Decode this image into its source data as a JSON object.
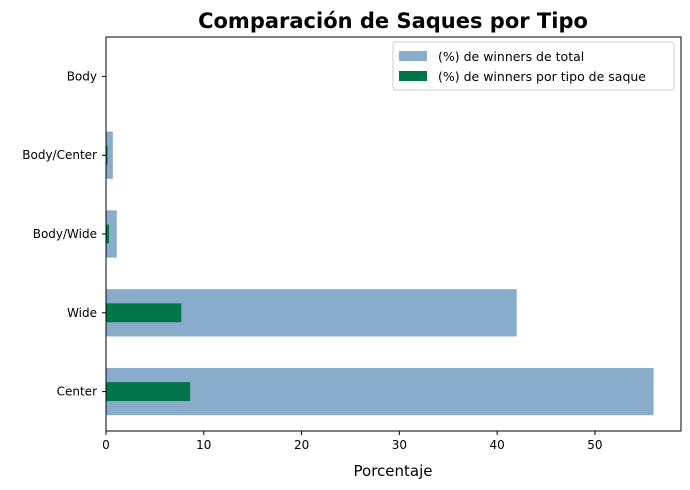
{
  "chart_data": {
    "type": "bar",
    "orientation": "horizontal",
    "title": "Comparación de Saques por Tipo",
    "xlabel": "Porcentaje",
    "ylabel": "",
    "categories": [
      "Center",
      "Wide",
      "Body/Wide",
      "Body/Center",
      "Body"
    ],
    "series": [
      {
        "name": "(%) de winners de total",
        "color": "#8aaccb",
        "values": [
          56.0,
          42.0,
          1.1,
          0.7,
          0.0
        ]
      },
      {
        "name": "(%) de winners por tipo de saque",
        "color": "#00754a",
        "values": [
          8.6,
          7.7,
          0.3,
          0.15,
          0.0
        ]
      }
    ],
    "xlim": [
      0,
      58.8
    ],
    "xticks": [
      0,
      10,
      20,
      30,
      40,
      50
    ],
    "grid": false,
    "legend_position": "top-right"
  }
}
